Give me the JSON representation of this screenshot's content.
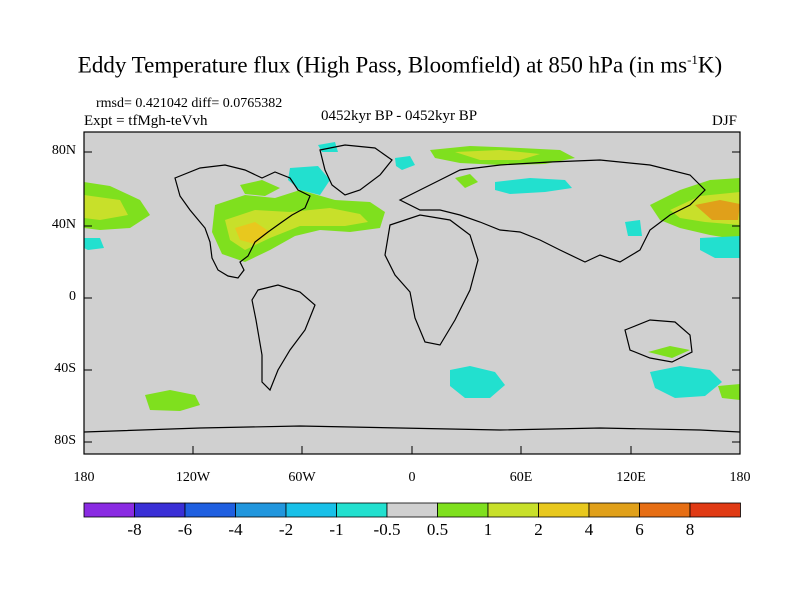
{
  "header": {
    "title_main": "Eddy Temperature flux (High Pass, Bloomfield) at 850 hPa (in ms",
    "title_sup": "-1",
    "title_end": "K)",
    "stats": "rmsd= 0.421042 diff= 0.0765382",
    "experiment": "Expt = tfMgh-teVvh",
    "period": "0452kyr BP - 0452kyr BP",
    "season": "DJF"
  },
  "axes": {
    "y_ticks": [
      "80N",
      "40N",
      "0",
      "40S",
      "80S"
    ],
    "x_ticks": [
      "180",
      "120W",
      "60W",
      "0",
      "60E",
      "120E",
      "180"
    ]
  },
  "legend": {
    "colors": [
      "#8a2be2",
      "#3a2fd6",
      "#1f5fe0",
      "#2196dd",
      "#18c0e8",
      "#22e0cf",
      "#d0d0d0",
      "#7fe01e",
      "#c8e02a",
      "#e8c81e",
      "#e0a01a",
      "#e66e14",
      "#e03a14"
    ],
    "labels": [
      "-8",
      "-6",
      "-4",
      "-2",
      "-1",
      "-0.5",
      "0.5",
      "1",
      "2",
      "4",
      "6",
      "8"
    ]
  },
  "map": {
    "background": "#d0d0d0",
    "positive_fill": "#7fe01e",
    "positive_mid": "#c8e02a",
    "positive_high": "#e0a01a",
    "negative_fill": "#22e0cf",
    "coast": "#000000"
  }
}
